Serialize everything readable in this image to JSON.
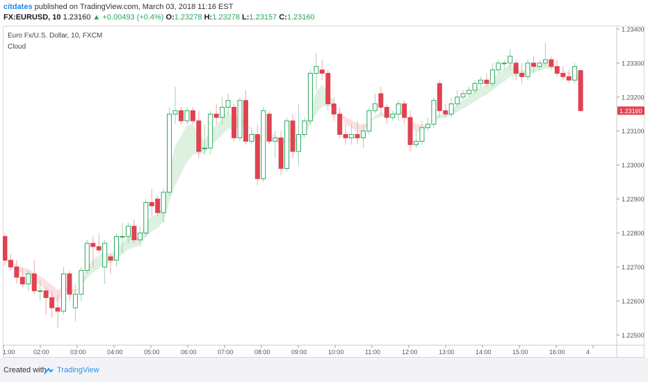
{
  "header": {
    "author": "citdates",
    "published_text": "published on TradingView.com, March 03, 2018 11:16 EST"
  },
  "quote": {
    "symbol": "FX:EURUSD, 10",
    "last": "1.23160",
    "arrow": "▲",
    "change": "+0.00493 (+0.4%)",
    "o_label": "O:",
    "o_value": "1.23278",
    "h_label": "H:",
    "h_value": "1.23278",
    "l_label": "L:",
    "l_value": "1.23157",
    "c_label": "C:",
    "c_value": "1.23160"
  },
  "legend": {
    "title": "Euro Fx/U.S. Dollar, 10, FXCM",
    "study": "Cloud"
  },
  "footer": {
    "created_with": "Created with",
    "brand": "TradingView"
  },
  "colors": {
    "up": "#26a65b",
    "down": "#e0424f",
    "cloud_up": "#d9efdd",
    "cloud_down": "#fbdde0",
    "price_label_bg": "#e0424f",
    "grid": "#e6e6e6"
  },
  "chart_data": {
    "type": "candlestick",
    "symbol": "EURUSD",
    "interval_minutes": 10,
    "ylim": [
      1.2247,
      1.2341
    ],
    "y_ticks": [
      "1.23400",
      "1.23300",
      "1.23200",
      "1.23100",
      "1.23000",
      "1.22900",
      "1.22800",
      "1.22700",
      "1.22600",
      "1.22500"
    ],
    "x_ticks": [
      "1:00",
      "02:00",
      "03:00",
      "04:00",
      "05:00",
      "06:00",
      "07:00",
      "08:00",
      "09:00",
      "10:00",
      "11:00",
      "12:00",
      "13:00",
      "14:00",
      "15:00",
      "16:00",
      "4"
    ],
    "last_price_label": "1.23160",
    "candles": [
      [
        1.2279,
        1.228,
        1.22705,
        1.2272
      ],
      [
        1.2272,
        1.2274,
        1.2269,
        1.227
      ],
      [
        1.227,
        1.2272,
        1.2265,
        1.2267
      ],
      [
        1.2267,
        1.227,
        1.2264,
        1.2265
      ],
      [
        1.2265,
        1.2269,
        1.2263,
        1.2268
      ],
      [
        1.2268,
        1.2272,
        1.2262,
        1.2263
      ],
      [
        1.2263,
        1.2266,
        1.226,
        1.2263
      ],
      [
        1.2263,
        1.2264,
        1.2256,
        1.2261
      ],
      [
        1.2261,
        1.2263,
        1.2255,
        1.2258
      ],
      [
        1.2258,
        1.2262,
        1.2252,
        1.2257
      ],
      [
        1.2257,
        1.227,
        1.2256,
        1.2268
      ],
      [
        1.2268,
        1.2269,
        1.226,
        1.2262
      ],
      [
        1.2258,
        1.2265,
        1.2254,
        1.2262
      ],
      [
        1.2262,
        1.227,
        1.226,
        1.2269
      ],
      [
        1.2269,
        1.2278,
        1.2268,
        1.2277
      ],
      [
        1.2277,
        1.2279,
        1.227,
        1.2276
      ],
      [
        1.2276,
        1.228,
        1.2274,
        1.2275
      ],
      [
        1.227,
        1.2278,
        1.2265,
        1.2277
      ],
      [
        1.2273,
        1.2274,
        1.2268,
        1.2272
      ],
      [
        1.2272,
        1.228,
        1.227,
        1.2279
      ],
      [
        1.2279,
        1.2283,
        1.2274,
        1.2279
      ],
      [
        1.2279,
        1.2283,
        1.2277,
        1.2282
      ],
      [
        1.2282,
        1.2284,
        1.2277,
        1.2278
      ],
      [
        1.2278,
        1.2282,
        1.2276,
        1.228
      ],
      [
        1.228,
        1.229,
        1.2279,
        1.2289
      ],
      [
        1.2289,
        1.2293,
        1.2285,
        1.2288
      ],
      [
        1.229,
        1.2291,
        1.2285,
        1.2286
      ],
      [
        1.2286,
        1.2293,
        1.2283,
        1.2292
      ],
      [
        1.2292,
        1.2317,
        1.2291,
        1.2315
      ],
      [
        1.2315,
        1.2323,
        1.2312,
        1.2316
      ],
      [
        1.2316,
        1.2317,
        1.2312,
        1.2313
      ],
      [
        1.2313,
        1.2317,
        1.2312,
        1.2316
      ],
      [
        1.2316,
        1.2317,
        1.2312,
        1.2313
      ],
      [
        1.2313,
        1.2316,
        1.2302,
        1.2304
      ],
      [
        1.2305,
        1.2312,
        1.2303,
        1.2305
      ],
      [
        1.2305,
        1.2316,
        1.2303,
        1.2315
      ],
      [
        1.2315,
        1.2318,
        1.2312,
        1.2314
      ],
      [
        1.2314,
        1.232,
        1.2312,
        1.2317
      ],
      [
        1.2317,
        1.2321,
        1.2315,
        1.2319
      ],
      [
        1.2317,
        1.2318,
        1.2307,
        1.2308
      ],
      [
        1.2308,
        1.232,
        1.2307,
        1.2319
      ],
      [
        1.2319,
        1.2322,
        1.2306,
        1.2307
      ],
      [
        1.2307,
        1.2311,
        1.2306,
        1.2309
      ],
      [
        1.2309,
        1.2312,
        1.2294,
        1.2296
      ],
      [
        1.2296,
        1.2317,
        1.2295,
        1.2316
      ],
      [
        1.2315,
        1.2316,
        1.2306,
        1.2307
      ],
      [
        1.2307,
        1.231,
        1.2302,
        1.2308
      ],
      [
        1.2308,
        1.231,
        1.2297,
        1.2299
      ],
      [
        1.2299,
        1.2314,
        1.2298,
        1.2313
      ],
      [
        1.2313,
        1.2315,
        1.2302,
        1.2304
      ],
      [
        1.2304,
        1.2318,
        1.23,
        1.2309
      ],
      [
        1.2309,
        1.2314,
        1.2308,
        1.2313
      ],
      [
        1.2313,
        1.2328,
        1.2312,
        1.2327
      ],
      [
        1.2327,
        1.2333,
        1.2322,
        1.2329
      ],
      [
        1.2328,
        1.2331,
        1.2325,
        1.2327
      ],
      [
        1.2327,
        1.2328,
        1.2316,
        1.2318
      ],
      [
        1.2318,
        1.232,
        1.2313,
        1.2315
      ],
      [
        1.2315,
        1.2317,
        1.2308,
        1.2309
      ],
      [
        1.2309,
        1.2312,
        1.2306,
        1.2308
      ],
      [
        1.2308,
        1.2312,
        1.2306,
        1.2309
      ],
      [
        1.2309,
        1.2313,
        1.2306,
        1.2308
      ],
      [
        1.2308,
        1.2312,
        1.2305,
        1.231
      ],
      [
        1.231,
        1.2317,
        1.2309,
        1.2316
      ],
      [
        1.2316,
        1.2321,
        1.2315,
        1.2318
      ],
      [
        1.2321,
        1.2323,
        1.2315,
        1.2317
      ],
      [
        1.2317,
        1.2318,
        1.2312,
        1.2314
      ],
      [
        1.2314,
        1.2316,
        1.2313,
        1.2315
      ],
      [
        1.2315,
        1.2319,
        1.2313,
        1.2318
      ],
      [
        1.2318,
        1.2319,
        1.2312,
        1.2314
      ],
      [
        1.2314,
        1.2316,
        1.2304,
        1.2306
      ],
      [
        1.2306,
        1.231,
        1.2305,
        1.2307
      ],
      [
        1.2307,
        1.2313,
        1.2306,
        1.2311
      ],
      [
        1.2311,
        1.2314,
        1.231,
        1.2312
      ],
      [
        1.2312,
        1.232,
        1.2311,
        1.2319
      ],
      [
        1.2324,
        1.2325,
        1.2314,
        1.2316
      ],
      [
        1.2316,
        1.2318,
        1.2314,
        1.2315
      ],
      [
        1.2315,
        1.232,
        1.2314,
        1.2318
      ],
      [
        1.2318,
        1.2322,
        1.2317,
        1.232
      ],
      [
        1.232,
        1.2322,
        1.2319,
        1.2321
      ],
      [
        1.2321,
        1.2323,
        1.232,
        1.2322
      ],
      [
        1.2322,
        1.2325,
        1.2321,
        1.2324
      ],
      [
        1.2324,
        1.2326,
        1.2323,
        1.2325
      ],
      [
        1.2325,
        1.2327,
        1.2323,
        1.2324
      ],
      [
        1.2324,
        1.233,
        1.2323,
        1.2328
      ],
      [
        1.2328,
        1.2331,
        1.2327,
        1.233
      ],
      [
        1.233,
        1.2331,
        1.2328,
        1.233
      ],
      [
        1.233,
        1.2334,
        1.2328,
        1.2332
      ],
      [
        1.233,
        1.2331,
        1.2325,
        1.2327
      ],
      [
        1.2327,
        1.233,
        1.2324,
        1.2326
      ],
      [
        1.2326,
        1.2331,
        1.2325,
        1.233
      ],
      [
        1.233,
        1.2332,
        1.2327,
        1.2329
      ],
      [
        1.2329,
        1.2331,
        1.2328,
        1.233
      ],
      [
        1.233,
        1.2336,
        1.2329,
        1.2331
      ],
      [
        1.2331,
        1.2332,
        1.2328,
        1.2329
      ],
      [
        1.2329,
        1.2331,
        1.2326,
        1.2327
      ],
      [
        1.2327,
        1.2329,
        1.2325,
        1.2326
      ],
      [
        1.2326,
        1.2328,
        1.2324,
        1.2325
      ],
      [
        1.2325,
        1.233,
        1.2324,
        1.2329
      ],
      [
        1.23278,
        1.23278,
        1.23157,
        1.2316
      ]
    ]
  }
}
